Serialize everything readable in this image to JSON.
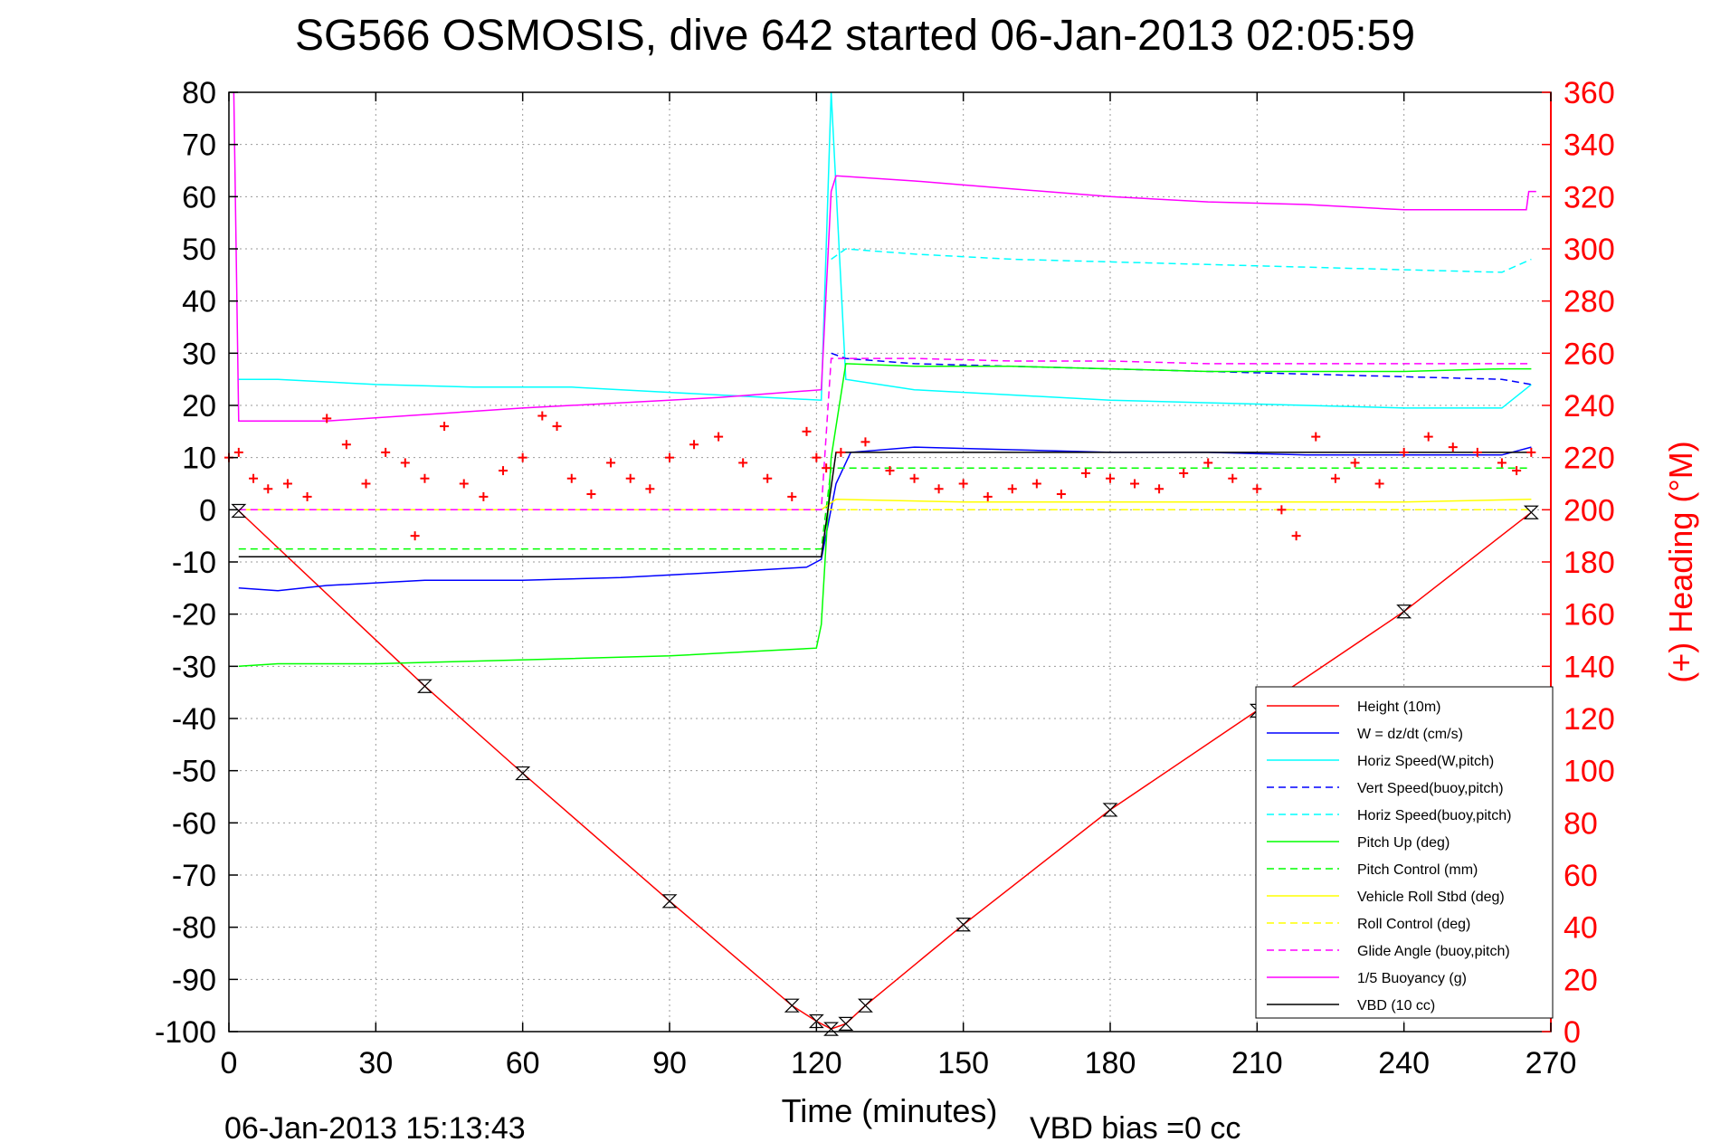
{
  "chart_data": {
    "type": "line",
    "title": "SG566 OSMOSIS, dive 642 started 06-Jan-2013 02:05:59",
    "xlabel": "Time (minutes)",
    "ylabel_right": "(+) Heading (°M)",
    "footer_left": "06-Jan-2013 15:13:43",
    "footer_right": "VBD bias =0 cc",
    "xlim": [
      0,
      270
    ],
    "ylim": [
      -100,
      80
    ],
    "ylim_right": [
      0,
      360
    ],
    "x_ticks": [
      0,
      30,
      60,
      90,
      120,
      150,
      180,
      210,
      240,
      270
    ],
    "y_ticks": [
      -100,
      -90,
      -80,
      -70,
      -60,
      -50,
      -40,
      -30,
      -20,
      -10,
      0,
      10,
      20,
      30,
      40,
      50,
      60,
      70,
      80
    ],
    "y_right_ticks": [
      0,
      20,
      40,
      60,
      80,
      100,
      120,
      140,
      160,
      180,
      200,
      220,
      240,
      260,
      280,
      300,
      320,
      340,
      360
    ],
    "grid": true,
    "legend_position": "bottom-right",
    "colors": {
      "axis": "#000000",
      "right_axis": "#ff0000",
      "grid": "#999999"
    },
    "series": [
      {
        "name": "Height (10m)",
        "color": "#ff0000",
        "style": "solid",
        "axis": "left",
        "x": [
          2,
          40,
          60,
          90,
          115,
          120,
          123,
          126,
          130,
          150,
          180,
          210,
          240,
          266
        ],
        "y": [
          -0.2,
          -33.8,
          -50.5,
          -75,
          -95,
          -98,
          -99.5,
          -98.5,
          -95,
          -79.5,
          -57.5,
          -38.5,
          -19.5,
          -0.5
        ]
      },
      {
        "name": "W = dz/dt (cm/s)",
        "color": "#0000ff",
        "style": "solid",
        "axis": "left",
        "x": [
          2,
          10,
          20,
          40,
          60,
          80,
          100,
          118,
          121,
          124,
          127,
          140,
          160,
          180,
          200,
          220,
          240,
          260,
          266
        ],
        "y": [
          -15,
          -15.5,
          -14.5,
          -13.5,
          -13.5,
          -13,
          -12,
          -11,
          -9.5,
          5,
          11,
          12,
          11.5,
          11,
          11,
          10.5,
          10.5,
          10.5,
          12
        ]
      },
      {
        "name": "Horiz Speed(W,pitch)",
        "color": "#00ffff",
        "style": "solid",
        "axis": "left",
        "x": [
          2,
          10,
          30,
          50,
          70,
          90,
          110,
          121,
          123,
          126,
          140,
          160,
          180,
          200,
          220,
          240,
          260,
          266
        ],
        "y": [
          25,
          25,
          24,
          23.5,
          23.5,
          22.5,
          21.5,
          21,
          80,
          25,
          23,
          22,
          21,
          20.5,
          20,
          19.5,
          19.5,
          24
        ]
      },
      {
        "name": "Vert Speed(buoy,pitch)",
        "color": "#0000ff",
        "style": "dashed",
        "axis": "left",
        "x": [
          123,
          126,
          140,
          160,
          180,
          200,
          220,
          240,
          260,
          266
        ],
        "y": [
          30,
          29,
          28,
          27.5,
          27,
          26.5,
          26,
          25.5,
          25,
          24
        ]
      },
      {
        "name": "Horiz Speed(buoy,pitch)",
        "color": "#00ffff",
        "style": "dashed",
        "axis": "left",
        "x": [
          123,
          126,
          140,
          160,
          180,
          200,
          220,
          240,
          260,
          266
        ],
        "y": [
          48,
          50,
          49,
          48,
          47.5,
          47,
          46.5,
          46,
          45.5,
          48
        ]
      },
      {
        "name": "Pitch Up (deg)",
        "color": "#00ff00",
        "style": "solid",
        "axis": "left",
        "x": [
          2,
          10,
          30,
          50,
          70,
          90,
          110,
          120,
          121,
          123,
          126,
          140,
          160,
          180,
          200,
          220,
          240,
          260,
          266
        ],
        "y": [
          -30,
          -29.5,
          -29.5,
          -29,
          -28.5,
          -28,
          -27,
          -26.5,
          -22,
          10,
          28,
          27.5,
          27.5,
          27,
          26.5,
          26.5,
          26.5,
          27,
          27
        ]
      },
      {
        "name": "Pitch Control (mm)",
        "color": "#00ff00",
        "style": "dashed",
        "axis": "left",
        "x": [
          2,
          121,
          123,
          266
        ],
        "y": [
          -7.5,
          -7.5,
          8,
          8
        ]
      },
      {
        "name": "Vehicle Roll Stbd (deg)",
        "color": "#ffff00",
        "style": "solid",
        "axis": "left",
        "x": [
          2,
          30,
          60,
          90,
          120,
          121,
          124,
          150,
          180,
          210,
          240,
          266
        ],
        "y": [
          0,
          0,
          0,
          0,
          0,
          0,
          2,
          1.5,
          1.5,
          1.5,
          1.5,
          2
        ]
      },
      {
        "name": "Roll Control (deg)",
        "color": "#ffff00",
        "style": "dashed",
        "axis": "left",
        "x": [
          2,
          266
        ],
        "y": [
          0,
          0
        ]
      },
      {
        "name": "Glide Angle (buoy,pitch)",
        "color": "#ff00ff",
        "style": "dashed",
        "axis": "left",
        "x": [
          2,
          121,
          123,
          140,
          160,
          180,
          200,
          220,
          240,
          266
        ],
        "y": [
          0,
          0,
          29,
          29,
          28.5,
          28.5,
          28,
          28,
          28,
          28
        ]
      },
      {
        "name": "1/5 Buoyancy (g)",
        "color": "#ff00ff",
        "style": "solid",
        "axis": "left",
        "x": [
          1,
          2,
          20,
          60,
          100,
          121,
          123,
          124,
          140,
          160,
          180,
          200,
          220,
          240,
          260,
          265,
          265.5,
          267
        ],
        "y": [
          80,
          17,
          17,
          19.5,
          21.5,
          23,
          61,
          64,
          63,
          61.5,
          60,
          59,
          58.5,
          57.5,
          57.5,
          57.5,
          61,
          61
        ]
      },
      {
        "name": "VBD (10 cc)",
        "color": "#000000",
        "style": "solid",
        "axis": "left",
        "x": [
          2,
          121,
          124,
          266
        ],
        "y": [
          -9,
          -9,
          11,
          11
        ]
      },
      {
        "name": "Heading",
        "color": "#ff0000",
        "style": "markers",
        "axis": "right",
        "show_in_legend": false,
        "x": [
          0,
          2,
          5,
          8,
          12,
          16,
          20,
          24,
          28,
          32,
          36,
          38,
          40,
          44,
          48,
          52,
          56,
          60,
          64,
          67,
          70,
          74,
          78,
          82,
          86,
          90,
          95,
          100,
          105,
          110,
          115,
          118,
          120,
          122,
          125,
          130,
          135,
          140,
          145,
          150,
          155,
          160,
          165,
          170,
          175,
          180,
          185,
          190,
          195,
          200,
          205,
          210,
          215,
          218,
          222,
          226,
          230,
          235,
          240,
          245,
          250,
          255,
          260,
          263,
          266
        ],
        "y": [
          220,
          222,
          212,
          208,
          210,
          205,
          235,
          225,
          210,
          222,
          218,
          190,
          212,
          232,
          210,
          205,
          215,
          220,
          236,
          232,
          212,
          206,
          218,
          212,
          208,
          220,
          225,
          228,
          218,
          212,
          205,
          230,
          220,
          216,
          222,
          226,
          215,
          212,
          208,
          210,
          205,
          208,
          210,
          206,
          214,
          212,
          210,
          208,
          214,
          218,
          212,
          208,
          200,
          190,
          228,
          212,
          218,
          210,
          222,
          228,
          224,
          222,
          218,
          215,
          222
        ]
      }
    ]
  }
}
